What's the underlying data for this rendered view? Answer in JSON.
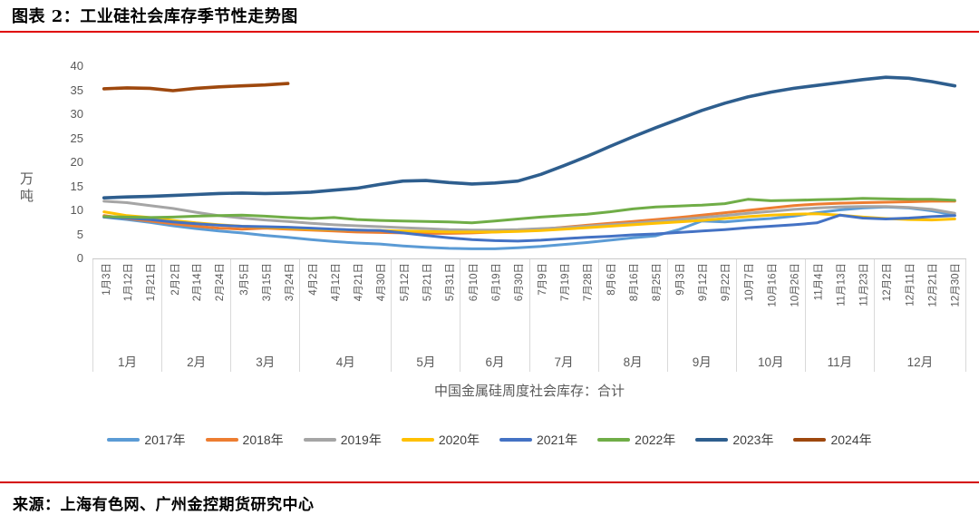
{
  "title": "图表 2：工业硅社会库存季节性走势图",
  "source": "来源：上海有色网、广州金控期货研究中心",
  "y_axis": {
    "unit": "万吨",
    "ticks": [
      40,
      35,
      30,
      25,
      20,
      15,
      10,
      5,
      0
    ]
  },
  "x_axis": {
    "title": "中国金属硅周度社会库存：合计",
    "labels": [
      "1月3日",
      "1月12日",
      "1月21日",
      "2月2日",
      "2月14日",
      "2月24日",
      "3月5日",
      "3月15日",
      "3月24日",
      "4月2日",
      "4月12日",
      "4月21日",
      "4月30日",
      "5月12日",
      "5月21日",
      "5月31日",
      "6月10日",
      "6月19日",
      "6月30日",
      "7月9日",
      "7月19日",
      "7月28日",
      "8月6日",
      "8月16日",
      "8月25日",
      "9月3日",
      "9月12日",
      "9月22日",
      "10月7日",
      "10月16日",
      "10月26日",
      "11月4日",
      "11月13日",
      "11月23日",
      "12月2日",
      "12月11日",
      "12月21日",
      "12月30日"
    ],
    "month_groups": [
      {
        "label": "1月",
        "ticks": 3
      },
      {
        "label": "2月",
        "ticks": 3
      },
      {
        "label": "3月",
        "ticks": 3
      },
      {
        "label": "4月",
        "ticks": 4
      },
      {
        "label": "5月",
        "ticks": 3
      },
      {
        "label": "6月",
        "ticks": 3
      },
      {
        "label": "7月",
        "ticks": 3
      },
      {
        "label": "8月",
        "ticks": 3
      },
      {
        "label": "9月",
        "ticks": 3
      },
      {
        "label": "10月",
        "ticks": 3
      },
      {
        "label": "11月",
        "ticks": 3
      },
      {
        "label": "12月",
        "ticks": 4
      }
    ]
  },
  "colors": {
    "accent_rule_top": "#e00000",
    "accent_rule_bottom": "#d40000",
    "axis_gray": "#595959",
    "grid_gray": "#d9d9d9"
  },
  "chart_data": {
    "type": "line",
    "title": "工业硅社会库存季节性走势图",
    "xlabel": "中国金属硅周度社会库存：合计",
    "ylabel": "万吨",
    "ylim": [
      0,
      40
    ],
    "grid": false,
    "legend_position": "bottom",
    "x": [
      "1月3日",
      "1月12日",
      "1月21日",
      "2月2日",
      "2月14日",
      "2月24日",
      "3月5日",
      "3月15日",
      "3月24日",
      "4月2日",
      "4月12日",
      "4月21日",
      "4月30日",
      "5月12日",
      "5月21日",
      "5月31日",
      "6月10日",
      "6月19日",
      "6月30日",
      "7月9日",
      "7月19日",
      "7月28日",
      "8月6日",
      "8月16日",
      "8月25日",
      "9月3日",
      "9月12日",
      "9月22日",
      "10月7日",
      "10月16日",
      "10月26日",
      "11月4日",
      "11月13日",
      "11月23日",
      "12月2日",
      "12月11日",
      "12月21日",
      "12月30日"
    ],
    "series": [
      {
        "name": "2017年",
        "color": "#5B9BD5",
        "stroke_width": 3,
        "values": [
          8.6,
          8.1,
          7.5,
          6.8,
          6.2,
          5.7,
          5.3,
          4.8,
          4.4,
          3.9,
          3.5,
          3.2,
          3.0,
          2.6,
          2.3,
          2.1,
          2.0,
          2.0,
          2.2,
          2.5,
          2.9,
          3.3,
          3.8,
          4.3,
          4.7,
          6.0,
          7.8,
          7.6,
          8.0,
          8.3,
          8.8,
          9.5,
          10.1,
          10.5,
          10.7,
          10.5,
          9.9,
          9.0
        ]
      },
      {
        "name": "2018年",
        "color": "#ED7D31",
        "stroke_width": 3,
        "values": [
          8.9,
          8.3,
          7.8,
          7.2,
          6.7,
          6.3,
          6.1,
          6.3,
          6.1,
          5.9,
          5.7,
          5.5,
          5.4,
          5.3,
          5.2,
          5.2,
          5.3,
          5.5,
          5.7,
          6.1,
          6.5,
          6.9,
          7.3,
          7.7,
          8.1,
          8.5,
          9.0,
          9.5,
          10.0,
          10.5,
          11.0,
          11.3,
          11.5,
          11.6,
          11.7,
          11.8,
          11.9,
          11.9
        ]
      },
      {
        "name": "2019年",
        "color": "#A5A5A5",
        "stroke_width": 3,
        "values": [
          11.9,
          11.6,
          11.0,
          10.4,
          9.6,
          8.9,
          8.4,
          8.0,
          7.7,
          7.3,
          7.0,
          6.8,
          6.6,
          6.4,
          6.2,
          6.0,
          5.9,
          5.9,
          6.0,
          6.2,
          6.4,
          6.7,
          7.0,
          7.3,
          7.7,
          8.1,
          8.5,
          8.9,
          9.4,
          9.8,
          10.2,
          10.5,
          10.7,
          10.8,
          10.8,
          10.6,
          10.2,
          9.4
        ]
      },
      {
        "name": "2020年",
        "color": "#FFC000",
        "stroke_width": 3,
        "values": [
          9.7,
          8.9,
          8.5,
          7.9,
          7.4,
          7.0,
          6.7,
          6.5,
          6.3,
          6.1,
          6.0,
          5.9,
          5.8,
          5.7,
          5.6,
          5.5,
          5.5,
          5.5,
          5.6,
          5.8,
          6.1,
          6.4,
          6.7,
          7.0,
          7.3,
          7.6,
          7.9,
          8.3,
          8.7,
          9.0,
          9.2,
          9.3,
          9.0,
          8.6,
          8.3,
          8.1,
          8.0,
          8.2
        ]
      },
      {
        "name": "2021年",
        "color": "#4472C4",
        "stroke_width": 3,
        "values": [
          8.6,
          8.4,
          8.1,
          7.6,
          7.2,
          6.9,
          6.7,
          6.6,
          6.5,
          6.3,
          6.1,
          5.9,
          5.8,
          5.3,
          4.8,
          4.3,
          3.9,
          3.7,
          3.6,
          3.8,
          4.1,
          4.4,
          4.6,
          4.9,
          5.1,
          5.4,
          5.7,
          6.0,
          6.4,
          6.7,
          7.0,
          7.4,
          9.0,
          8.4,
          8.2,
          8.4,
          8.7,
          8.9
        ]
      },
      {
        "name": "2022年",
        "color": "#70AD47",
        "stroke_width": 3,
        "values": [
          8.7,
          8.6,
          8.5,
          8.6,
          8.8,
          8.9,
          9.0,
          8.8,
          8.5,
          8.3,
          8.5,
          8.1,
          7.9,
          7.8,
          7.7,
          7.6,
          7.4,
          7.8,
          8.2,
          8.6,
          8.9,
          9.2,
          9.7,
          10.3,
          10.7,
          10.9,
          11.1,
          11.4,
          12.3,
          12.0,
          12.1,
          12.2,
          12.3,
          12.5,
          12.4,
          12.3,
          12.3,
          12.1
        ]
      },
      {
        "name": "2023年",
        "color": "#2E5E8E",
        "stroke_width": 3.6,
        "values": [
          12.6,
          12.8,
          12.9,
          13.1,
          13.3,
          13.5,
          13.6,
          13.5,
          13.6,
          13.8,
          14.2,
          14.6,
          15.4,
          16.1,
          16.2,
          15.8,
          15.5,
          15.7,
          16.1,
          17.5,
          19.3,
          21.2,
          23.3,
          25.3,
          27.2,
          29.0,
          30.8,
          32.3,
          33.6,
          34.6,
          35.4,
          36.0,
          36.6,
          37.2,
          37.7,
          37.5,
          36.8,
          35.9
        ]
      },
      {
        "name": "2024年",
        "color": "#9E480E",
        "stroke_width": 3.6,
        "values": [
          35.3,
          35.5,
          35.4,
          34.9,
          35.4,
          35.7,
          35.9,
          36.1,
          36.4,
          null,
          null,
          null,
          null,
          null,
          null,
          null,
          null,
          null,
          null,
          null,
          null,
          null,
          null,
          null,
          null,
          null,
          null,
          null,
          null,
          null,
          null,
          null,
          null,
          null,
          null,
          null,
          null,
          null
        ]
      }
    ]
  }
}
